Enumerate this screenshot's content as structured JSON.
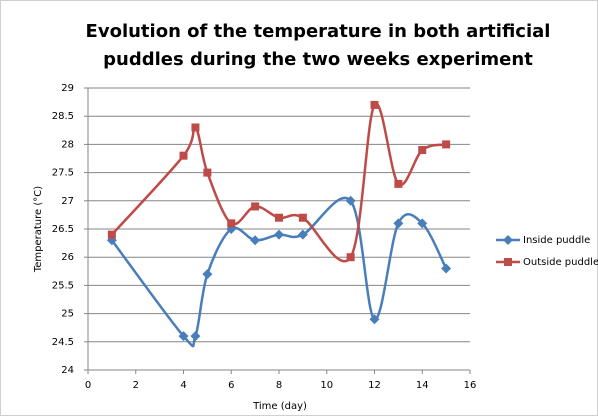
{
  "chart_data": {
    "type": "line",
    "title": [
      "Evolution of the temperature in both artificial",
      "puddles  during the two weeks experiment"
    ],
    "x_label": "Time (day)",
    "y_label": "Temperature (°C)",
    "smooth": true,
    "grid": true,
    "legend": "right",
    "series": [
      {
        "name": "Inside puddle",
        "color": "#4a7ebb",
        "marker": "diamond",
        "x": [
          1,
          4,
          4.5,
          5,
          6,
          7,
          8,
          9,
          11,
          12,
          13,
          14,
          15
        ],
        "values": [
          26.3,
          24.6,
          24.6,
          25.7,
          26.5,
          26.3,
          26.4,
          26.4,
          27.0,
          24.9,
          26.6,
          26.6,
          25.8
        ]
      },
      {
        "name": "Outside puddle",
        "color": "#be4b48",
        "marker": "square",
        "x": [
          1,
          4,
          4.5,
          5,
          6,
          7,
          8,
          9,
          11,
          12,
          13,
          14,
          15
        ],
        "values": [
          26.4,
          27.8,
          28.3,
          27.5,
          26.6,
          26.9,
          26.7,
          26.7,
          26.0,
          28.7,
          27.3,
          27.9,
          28.0
        ]
      }
    ],
    "xlim": [
      0,
      16
    ],
    "xticks": [
      0,
      2,
      4,
      6,
      8,
      10,
      12,
      14,
      16
    ],
    "ylim": [
      24,
      29
    ],
    "yticks": [
      24,
      24.5,
      25,
      25.5,
      26,
      26.5,
      27,
      27.5,
      28,
      28.5,
      29
    ]
  }
}
